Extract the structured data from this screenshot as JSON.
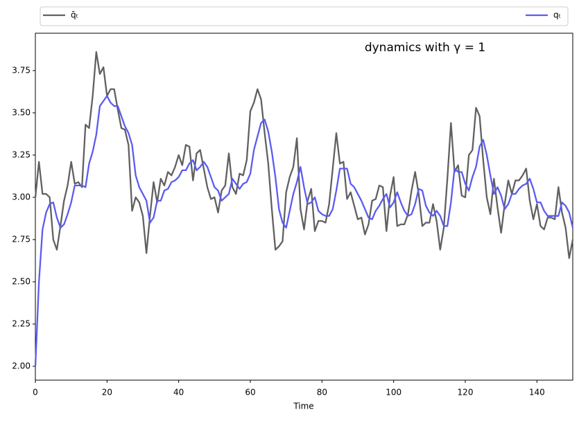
{
  "chart_data": {
    "type": "line",
    "annotation": "dynamics with γ = 1",
    "xlabel": "Time",
    "x": [
      0,
      1,
      2,
      3,
      4,
      5,
      6,
      7,
      8,
      9,
      10,
      11,
      12,
      13,
      14,
      15,
      16,
      17,
      18,
      19,
      20,
      21,
      22,
      23,
      24,
      25,
      26,
      27,
      28,
      29,
      30,
      31,
      32,
      33,
      34,
      35,
      36,
      37,
      38,
      39,
      40,
      41,
      42,
      43,
      44,
      45,
      46,
      47,
      48,
      49,
      50,
      51,
      52,
      53,
      54,
      55,
      56,
      57,
      58,
      59,
      60,
      61,
      62,
      63,
      64,
      65,
      66,
      67,
      68,
      69,
      70,
      71,
      72,
      73,
      74,
      75,
      76,
      77,
      78,
      79,
      80,
      81,
      82,
      83,
      84,
      85,
      86,
      87,
      88,
      89,
      90,
      91,
      92,
      93,
      94,
      95,
      96,
      97,
      98,
      99,
      100,
      101,
      102,
      103,
      104,
      105,
      106,
      107,
      108,
      109,
      110,
      111,
      112,
      113,
      114,
      115,
      116,
      117,
      118,
      119,
      120,
      121,
      122,
      123,
      124,
      125,
      126,
      127,
      128,
      129,
      130,
      131,
      132,
      133,
      134,
      135,
      136,
      137,
      138,
      139,
      140,
      141,
      142,
      143,
      144,
      145,
      146,
      147,
      148,
      149,
      150
    ],
    "series": [
      {
        "name": "q̄ₜ",
        "color": "#606060",
        "values": [
          3.0,
          3.21,
          3.02,
          3.02,
          3.0,
          2.75,
          2.69,
          2.83,
          2.98,
          3.07,
          3.21,
          3.08,
          3.09,
          3.06,
          3.43,
          3.41,
          3.6,
          3.86,
          3.73,
          3.77,
          3.6,
          3.64,
          3.64,
          3.52,
          3.41,
          3.4,
          3.31,
          2.92,
          3.0,
          2.97,
          2.89,
          2.67,
          2.89,
          3.09,
          2.97,
          3.11,
          3.07,
          3.15,
          3.13,
          3.18,
          3.25,
          3.19,
          3.31,
          3.3,
          3.1,
          3.26,
          3.28,
          3.17,
          3.06,
          2.99,
          3.0,
          2.91,
          3.04,
          3.07,
          3.26,
          3.06,
          3.02,
          3.14,
          3.13,
          3.22,
          3.51,
          3.56,
          3.64,
          3.58,
          3.38,
          3.2,
          2.93,
          2.69,
          2.71,
          2.74,
          3.03,
          3.12,
          3.18,
          3.35,
          2.93,
          2.81,
          2.98,
          3.05,
          2.8,
          2.86,
          2.86,
          2.85,
          2.96,
          3.17,
          3.38,
          3.2,
          3.21,
          2.99,
          3.03,
          2.95,
          2.87,
          2.88,
          2.78,
          2.84,
          2.98,
          2.99,
          3.07,
          3.06,
          2.8,
          3.01,
          3.12,
          2.83,
          2.84,
          2.84,
          2.9,
          3.04,
          3.15,
          3.02,
          2.83,
          2.85,
          2.85,
          2.96,
          2.86,
          2.69,
          2.82,
          3.11,
          3.44,
          3.15,
          3.19,
          3.01,
          3.0,
          3.25,
          3.28,
          3.53,
          3.48,
          3.22,
          3.0,
          2.9,
          3.11,
          2.94,
          2.79,
          2.96,
          3.1,
          3.02,
          3.1,
          3.1,
          3.13,
          3.17,
          2.98,
          2.87,
          2.96,
          2.83,
          2.81,
          2.88,
          2.88,
          2.87,
          3.06,
          2.91,
          2.82,
          2.64,
          2.75
        ]
      },
      {
        "name": "qₜ",
        "color": "#5b5bf0",
        "values": [
          2.0,
          2.5,
          2.81,
          2.91,
          2.96,
          2.97,
          2.88,
          2.82,
          2.84,
          2.9,
          2.97,
          3.07,
          3.07,
          3.07,
          3.06,
          3.2,
          3.27,
          3.37,
          3.54,
          3.57,
          3.6,
          3.56,
          3.54,
          3.54,
          3.48,
          3.42,
          3.38,
          3.31,
          3.13,
          3.06,
          3.02,
          2.98,
          2.85,
          2.88,
          2.98,
          2.98,
          3.04,
          3.05,
          3.09,
          3.1,
          3.12,
          3.16,
          3.16,
          3.2,
          3.22,
          3.16,
          3.18,
          3.21,
          3.18,
          3.12,
          3.06,
          3.04,
          2.98,
          3.0,
          3.02,
          3.11,
          3.08,
          3.05,
          3.08,
          3.09,
          3.14,
          3.28,
          3.36,
          3.44,
          3.46,
          3.39,
          3.27,
          3.12,
          2.93,
          2.85,
          2.82,
          2.92,
          3.02,
          3.09,
          3.18,
          3.06,
          2.96,
          2.97,
          3.0,
          2.92,
          2.9,
          2.89,
          2.89,
          2.93,
          3.04,
          3.17,
          3.17,
          3.17,
          3.08,
          3.06,
          3.02,
          2.98,
          2.93,
          2.88,
          2.87,
          2.92,
          2.95,
          2.99,
          3.02,
          2.94,
          2.97,
          3.03,
          2.97,
          2.92,
          2.89,
          2.9,
          2.96,
          3.05,
          3.04,
          2.95,
          2.91,
          2.89,
          2.92,
          2.89,
          2.83,
          2.83,
          2.97,
          3.17,
          3.15,
          3.15,
          3.08,
          3.04,
          3.12,
          3.18,
          3.3,
          3.34,
          3.25,
          3.13,
          3.02,
          3.06,
          3.01,
          2.93,
          2.96,
          3.02,
          3.02,
          3.05,
          3.07,
          3.08,
          3.11,
          3.05,
          2.97,
          2.97,
          2.92,
          2.89,
          2.89,
          2.89,
          2.89,
          2.97,
          2.95,
          2.91,
          2.82
        ]
      }
    ],
    "xlim": [
      0,
      150
    ],
    "xticks": [
      0,
      20,
      40,
      60,
      80,
      100,
      120,
      140
    ],
    "ylim": [
      1.918,
      3.971
    ],
    "yticks": [
      {
        "value": 2,
        "label": "2.00"
      },
      {
        "value": 2.25,
        "label": "2.25"
      },
      {
        "value": 2.5,
        "label": "2.50"
      },
      {
        "value": 2.75,
        "label": "2.75"
      },
      {
        "value": 3,
        "label": "3.00"
      },
      {
        "value": 3.25,
        "label": "3.25"
      },
      {
        "value": 3.5,
        "label": "3.50"
      },
      {
        "value": 3.75,
        "label": "3.75"
      }
    ],
    "grid": false
  }
}
